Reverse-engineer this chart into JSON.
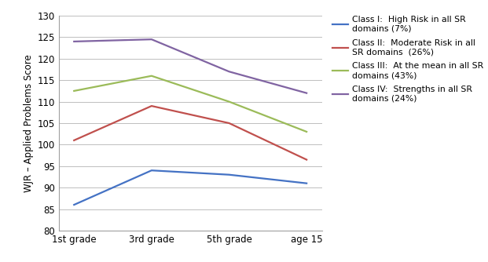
{
  "x_labels": [
    "1st grade",
    "3rd grade",
    "5th grade",
    "age 15"
  ],
  "series": [
    {
      "label": "Class I:  High Risk in all SR\ndomains (7%)",
      "values": [
        86,
        94,
        93,
        91
      ],
      "color": "#4472C4"
    },
    {
      "label": "Class II:  Moderate Risk in all\nSR domains  (26%)",
      "values": [
        101,
        109,
        105,
        96.5
      ],
      "color": "#C0504D"
    },
    {
      "label": "Class III:  At the mean in all SR\ndomains (43%)",
      "values": [
        112.5,
        116,
        110,
        103
      ],
      "color": "#9BBB59"
    },
    {
      "label": "Class IV:  Strengths in all SR\ndomains (24%)",
      "values": [
        124,
        124.5,
        117,
        112
      ],
      "color": "#8064A2"
    }
  ],
  "ylabel": "WJR – Applied Problems Score",
  "ylim": [
    80,
    130
  ],
  "yticks": [
    80,
    85,
    90,
    95,
    100,
    105,
    110,
    115,
    120,
    125,
    130
  ],
  "background_color": "#FFFFFF",
  "grid_color": "#BEBEBE",
  "figsize": [
    6.21,
    3.34
  ],
  "dpi": 100
}
